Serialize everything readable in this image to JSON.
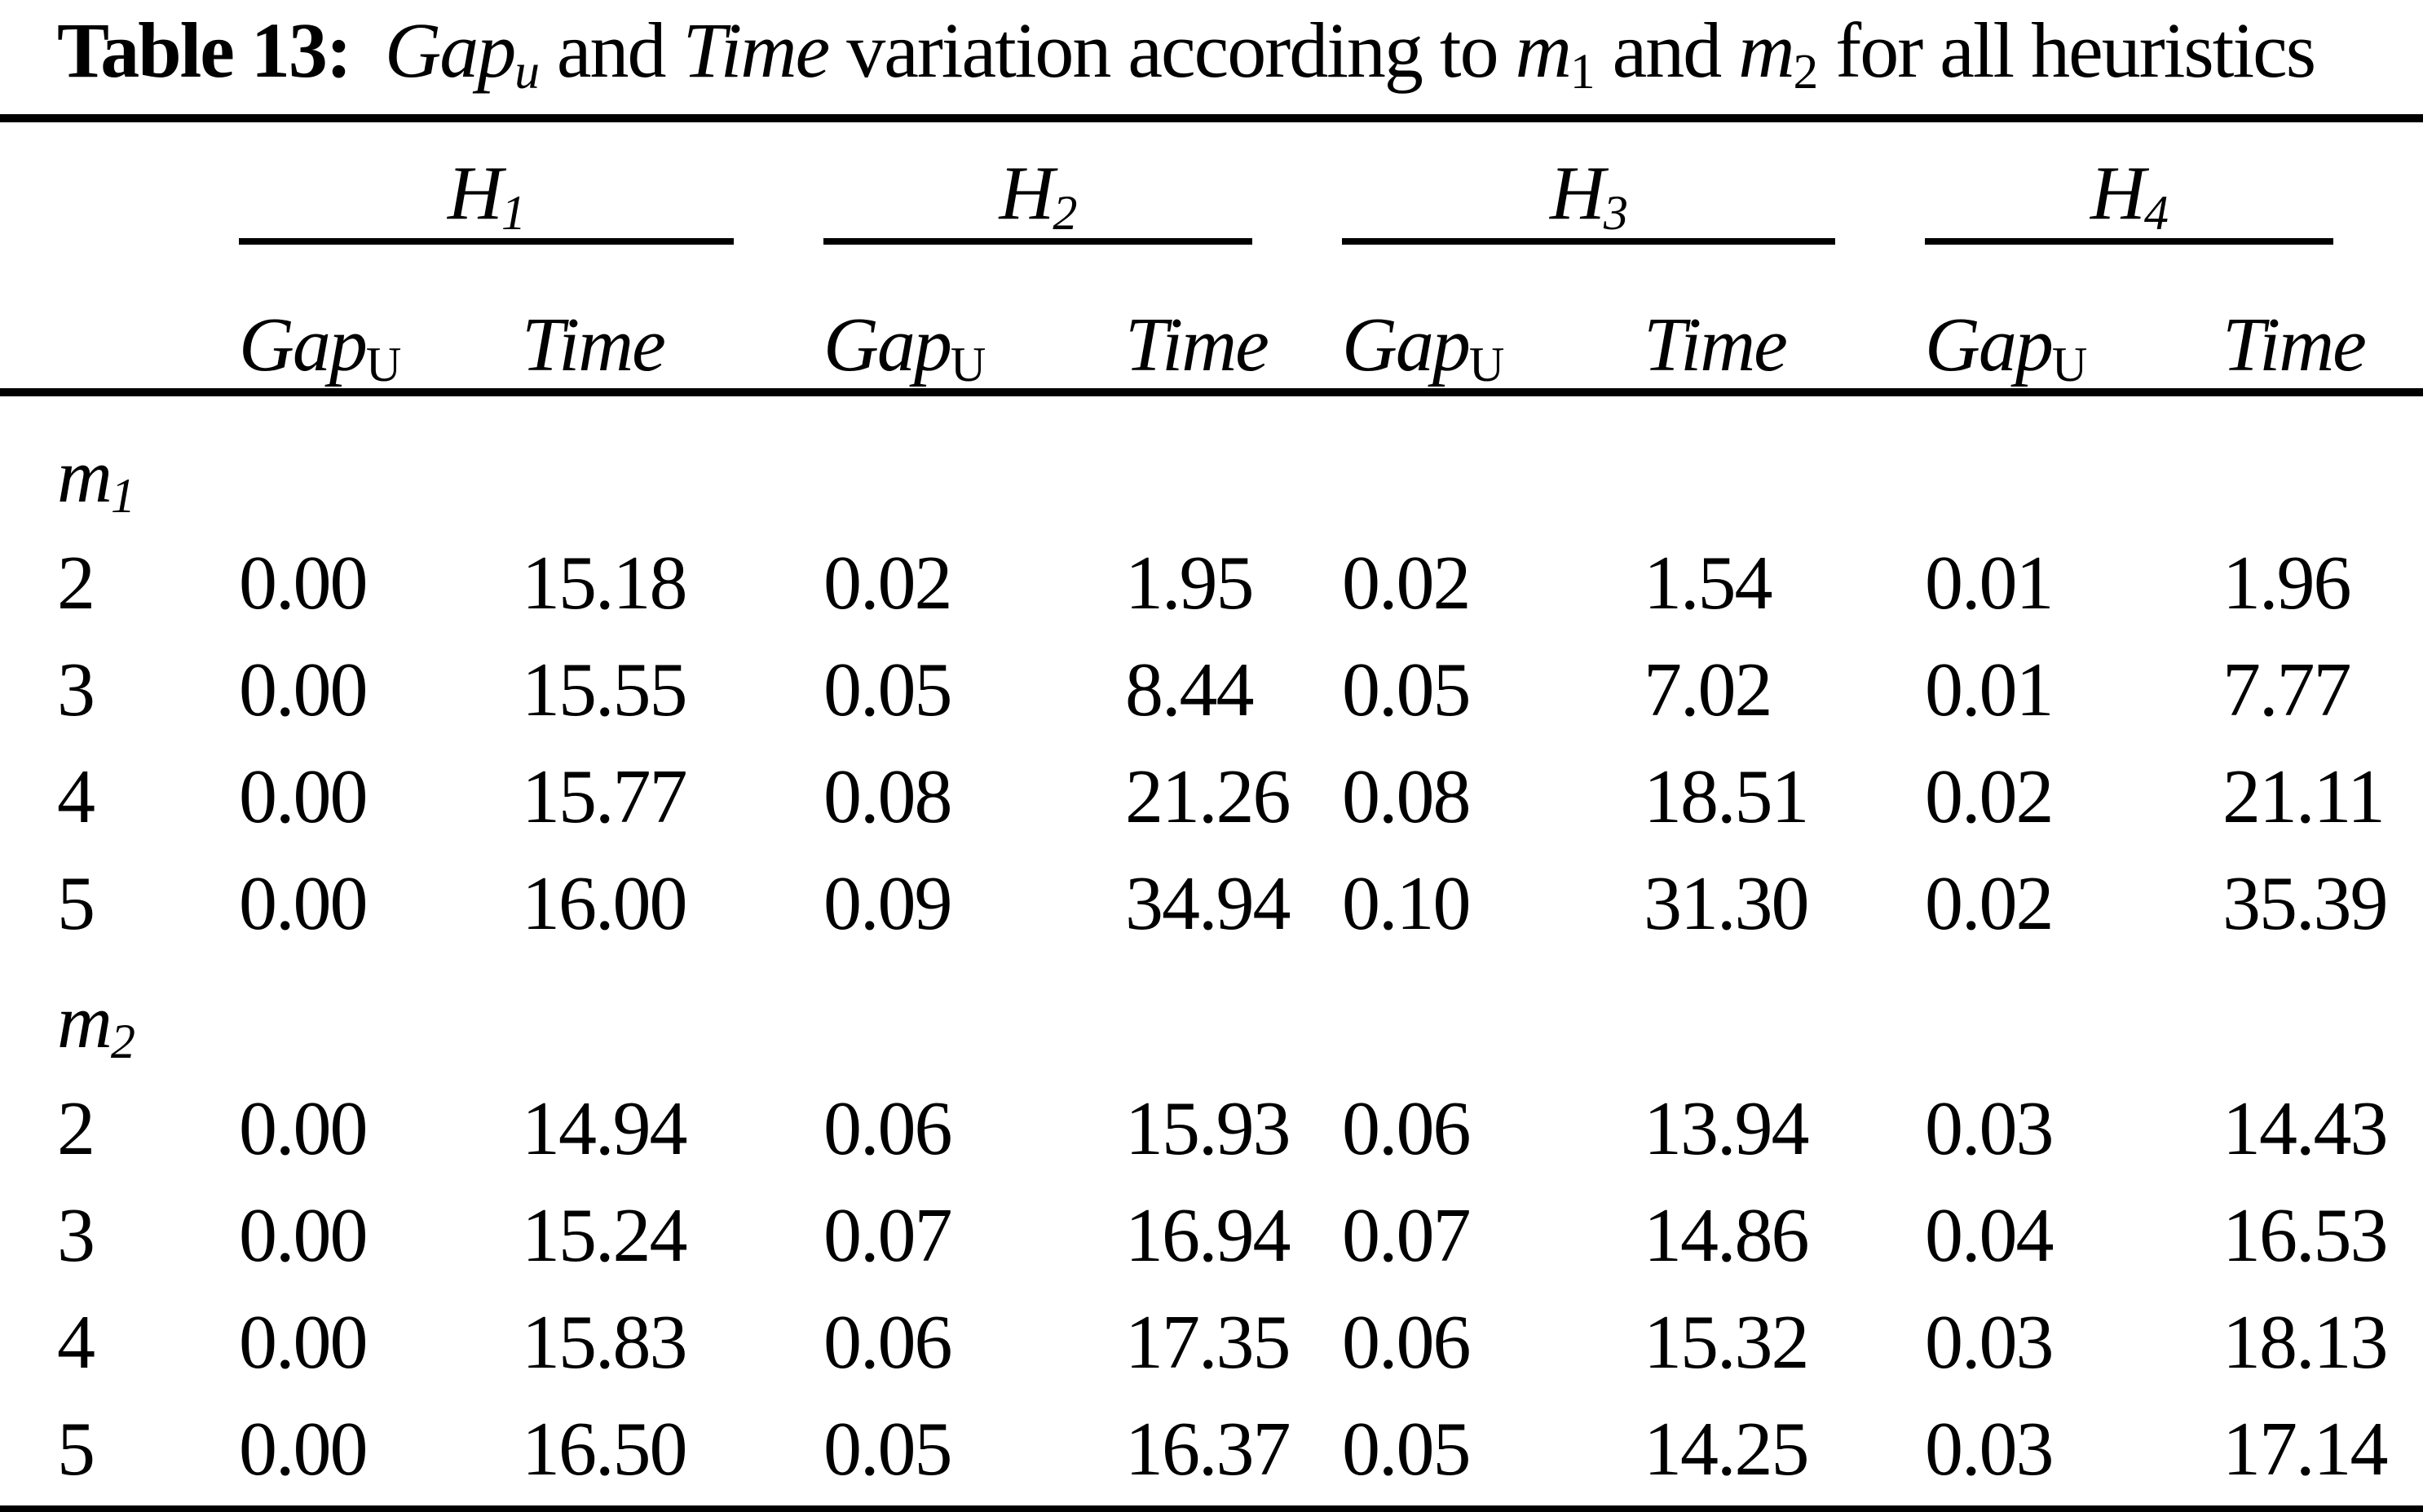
{
  "page": {
    "background": "#ffffff",
    "text_color": "#000000"
  },
  "title": {
    "prefix": "Table 13:",
    "gap_word": "Gap",
    "gap_sub": "u",
    "and_1": " and ",
    "time_word": "Time",
    "middle": " variation according to ",
    "m_word_1": "m",
    "m_sub_1": "1",
    "and_2": " and ",
    "m_word_2": "m",
    "m_sub_2": "2",
    "suffix": " for all heuristics"
  },
  "header": {
    "groups": [
      {
        "name": "H",
        "sub": "1"
      },
      {
        "name": "H",
        "sub": "2"
      },
      {
        "name": "H",
        "sub": "3"
      },
      {
        "name": "H",
        "sub": "4"
      }
    ],
    "sub_gap": "Gap",
    "sub_gap_sub": "U",
    "sub_time": "Time"
  },
  "sections": [
    {
      "label": "m",
      "label_sub": "1",
      "rows": [
        {
          "key": "2",
          "values": [
            "0.00",
            "15.18",
            "0.02",
            "1.95",
            "0.02",
            "1.54",
            "0.01",
            "1.96"
          ]
        },
        {
          "key": "3",
          "values": [
            "0.00",
            "15.55",
            "0.05",
            "8.44",
            "0.05",
            "7.02",
            "0.01",
            "7.77"
          ]
        },
        {
          "key": "4",
          "values": [
            "0.00",
            "15.77",
            "0.08",
            "21.26",
            "0.08",
            "18.51",
            "0.02",
            "21.11"
          ]
        },
        {
          "key": "5",
          "values": [
            "0.00",
            "16.00",
            "0.09",
            "34.94",
            "0.10",
            "31.30",
            "0.02",
            "35.39"
          ]
        }
      ]
    },
    {
      "label": "m",
      "label_sub": "2",
      "rows": [
        {
          "key": "2",
          "values": [
            "0.00",
            "14.94",
            "0.06",
            "15.93",
            "0.06",
            "13.94",
            "0.03",
            "14.43"
          ]
        },
        {
          "key": "3",
          "values": [
            "0.00",
            "15.24",
            "0.07",
            "16.94",
            "0.07",
            "14.86",
            "0.04",
            "16.53"
          ]
        },
        {
          "key": "4",
          "values": [
            "0.00",
            "15.83",
            "0.06",
            "17.35",
            "0.06",
            "15.32",
            "0.03",
            "18.13"
          ]
        },
        {
          "key": "5",
          "values": [
            "0.00",
            "16.50",
            "0.05",
            "16.37",
            "0.05",
            "14.25",
            "0.03",
            "17.14"
          ]
        }
      ]
    }
  ],
  "chart_data": {
    "type": "table",
    "title": "Table 13: Gap_u and Time variation according to m_1 and m_2 for all heuristics",
    "column_groups": [
      "H1",
      "H2",
      "H3",
      "H4"
    ],
    "columns": [
      "",
      "H1 Gap_U",
      "H1 Time",
      "H2 Gap_U",
      "H2 Time",
      "H3 Gap_U",
      "H3 Time",
      "H4 Gap_U",
      "H4 Time"
    ],
    "rows": [
      {
        "section": "m1",
        "key": 2,
        "values": [
          0.0,
          15.18,
          0.02,
          1.95,
          0.02,
          1.54,
          0.01,
          1.96
        ]
      },
      {
        "section": "m1",
        "key": 3,
        "values": [
          0.0,
          15.55,
          0.05,
          8.44,
          0.05,
          7.02,
          0.01,
          7.77
        ]
      },
      {
        "section": "m1",
        "key": 4,
        "values": [
          0.0,
          15.77,
          0.08,
          21.26,
          0.08,
          18.51,
          0.02,
          21.11
        ]
      },
      {
        "section": "m1",
        "key": 5,
        "values": [
          0.0,
          16.0,
          0.09,
          34.94,
          0.1,
          31.3,
          0.02,
          35.39
        ]
      },
      {
        "section": "m2",
        "key": 2,
        "values": [
          0.0,
          14.94,
          0.06,
          15.93,
          0.06,
          13.94,
          0.03,
          14.43
        ]
      },
      {
        "section": "m2",
        "key": 3,
        "values": [
          0.0,
          15.24,
          0.07,
          16.94,
          0.07,
          14.86,
          0.04,
          16.53
        ]
      },
      {
        "section": "m2",
        "key": 4,
        "values": [
          0.0,
          15.83,
          0.06,
          17.35,
          0.06,
          15.32,
          0.03,
          18.13
        ]
      },
      {
        "section": "m2",
        "key": 5,
        "values": [
          0.0,
          16.5,
          0.05,
          16.37,
          0.05,
          14.25,
          0.03,
          17.14
        ]
      }
    ]
  }
}
